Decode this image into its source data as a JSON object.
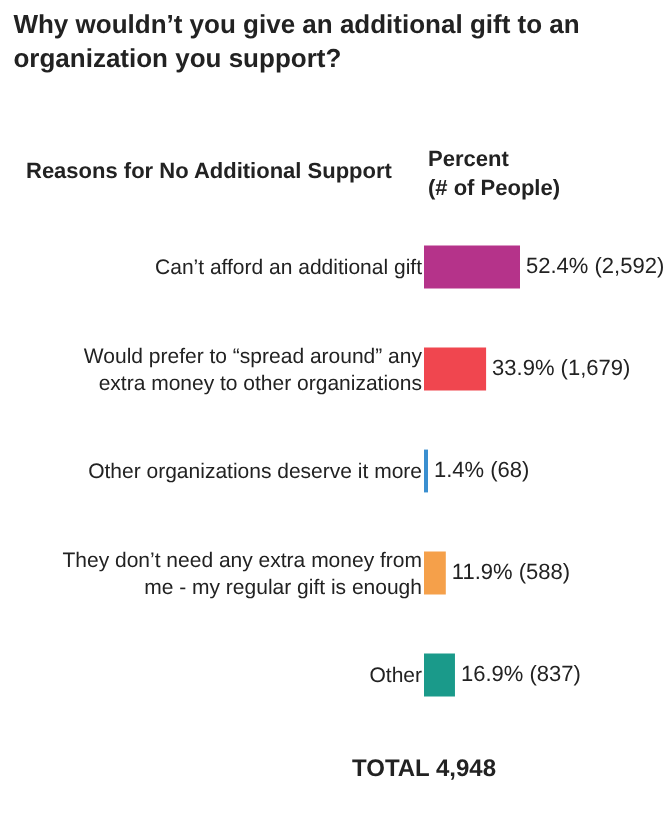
{
  "chart_data": {
    "type": "bar",
    "orientation": "horizontal",
    "title": "Why wouldn’t you give an additional gift to an organization you support?",
    "ylabel": "Reasons for No Additional Support",
    "xlabel": "Percent (# of People)",
    "categories": [
      "Can’t afford an additional gift",
      "Would prefer to “spread around” any extra money to other organizations",
      "Other organizations deserve it more",
      "They don’t need any extra money from me - my regular gift is enough",
      "Other"
    ],
    "values": [
      52.4,
      33.9,
      1.4,
      11.9,
      16.9
    ],
    "colors": [
      "#b5338a",
      "#f0464f",
      "#3a8fd0",
      "#f5a04a",
      "#1a9a8a"
    ],
    "value_labels": [
      "52.4% (2,592)",
      "33.9% (1,679)",
      "1.4% (68)",
      "11.9% (588)",
      "16.9% (837)"
    ],
    "annotations": [
      "TOTAL 4,948"
    ]
  }
}
